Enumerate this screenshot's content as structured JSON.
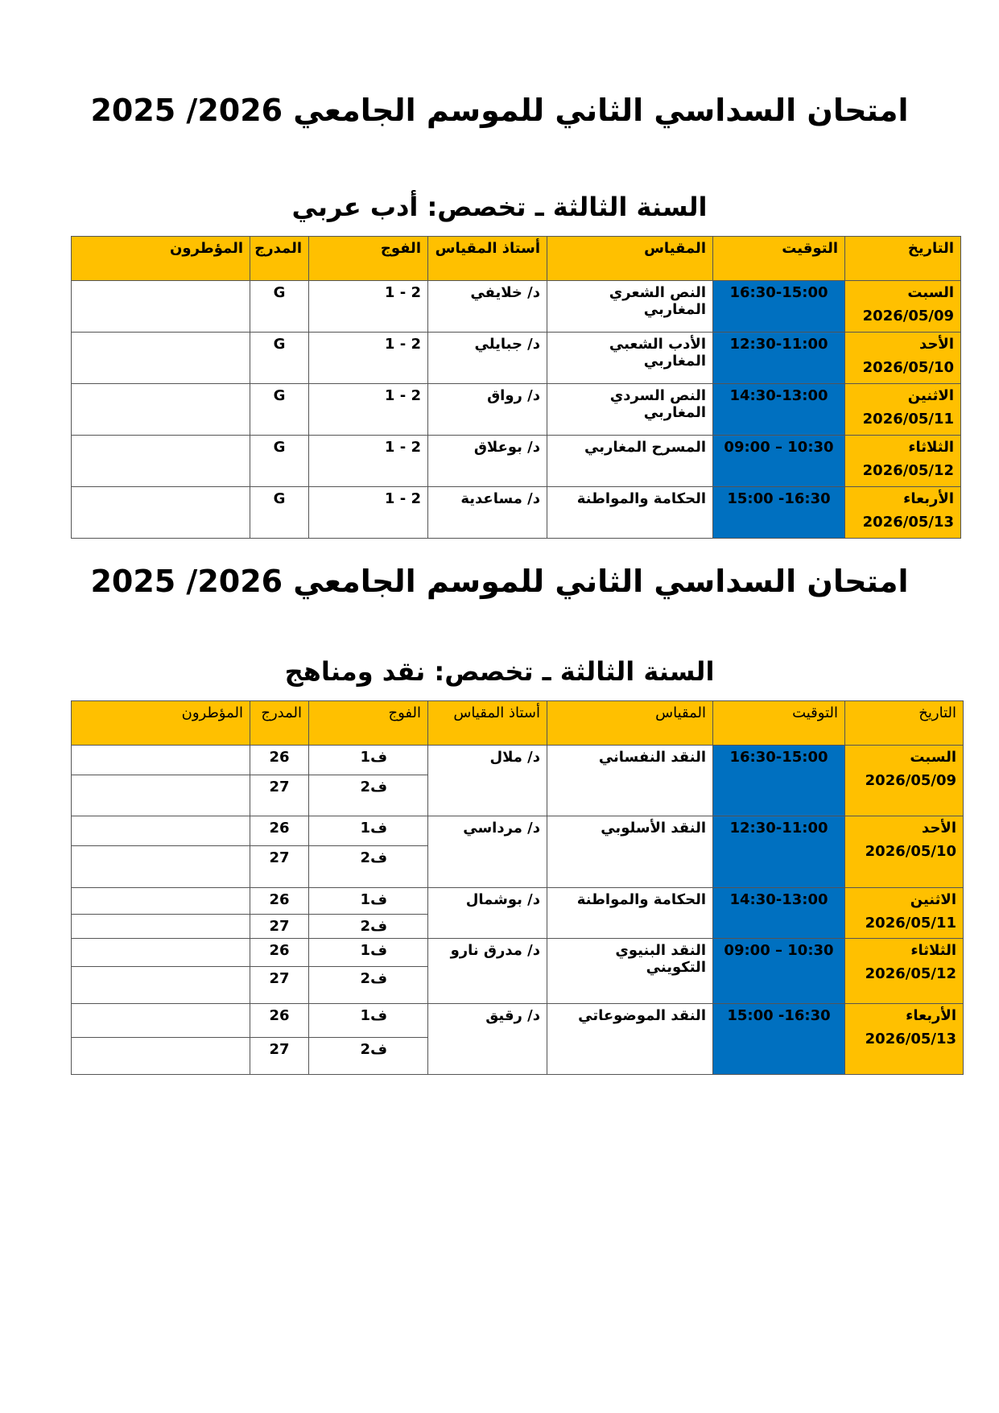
{
  "title": "امتحان السداسي الثاني للموسم الجامعي 2026/ 2025",
  "colors": {
    "header": "#ffc000",
    "date": "#ffc000",
    "time": "#0070c0"
  },
  "headers": [
    "التاريخ",
    "التوقيت",
    "المقياس",
    "أستاذ المقياس",
    "الفوج",
    "المدرج",
    "المؤطرون"
  ],
  "section1": {
    "subtitle": "السنة الثالثة ـ تخصص: أدب عربي",
    "rows": [
      {
        "day": "السبت",
        "date": "2026/05/09",
        "time": "16:30-15:00",
        "module": "النص الشعري المغاربي",
        "teacher": "د/ خلايفي",
        "group": "2 - 1",
        "hall": "G"
      },
      {
        "day": "الأحد",
        "date": "2026/05/10",
        "time": "12:30-11:00",
        "module": "الأدب الشعبي المغاربي",
        "teacher": "د/ جبايلي",
        "group": "2 - 1",
        "hall": "G"
      },
      {
        "day": "الاثنين",
        "date": "2026/05/11",
        "time": "14:30-13:00",
        "module": "النص السردي المغاربي",
        "teacher": "د/ رواق",
        "group": "2 - 1",
        "hall": "G"
      },
      {
        "day": "الثلاثاء",
        "date": "2026/05/12",
        "time": "10:30 – 09:00",
        "module": "المسرح المغاربي",
        "teacher": "د/ بوعلاق",
        "group": "2 - 1",
        "hall": "G"
      },
      {
        "day": "الأربعاء",
        "date": "2026/05/13",
        "time": "16:30- 15:00",
        "module": "الحكامة والمواطنة",
        "teacher": "د/ مساعدية",
        "group": "2 - 1",
        "hall": "G"
      }
    ]
  },
  "section2": {
    "subtitle": "السنة الثالثة ـ تخصص: نقد ومناهج",
    "groups": [
      "ف1",
      "ف2"
    ],
    "halls": [
      "26",
      "27"
    ],
    "rows": [
      {
        "day": "السبت",
        "date": "2026/05/09",
        "time": "16:30-15:00",
        "module": "النقد النفساني",
        "teacher": "د/ ملال"
      },
      {
        "day": "الأحد",
        "date": "2026/05/10",
        "time": "12:30-11:00",
        "module": "النقد الأسلوبي",
        "teacher": "د/ مرداسي"
      },
      {
        "day": "الاثنين",
        "date": "2026/05/11",
        "time": "14:30-13:00",
        "module": "الحكامة والمواطنة",
        "teacher": "د/ بوشمال"
      },
      {
        "day": "الثلاثاء",
        "date": "2026/05/12",
        "time": "10:30 – 09:00",
        "module": "النقد البنيوي التكويني",
        "teacher": "د/ مدرق نارو"
      },
      {
        "day": "الأربعاء",
        "date": "2026/05/13",
        "time": "16:30- 15:00",
        "module": "النقد الموضوعاتي",
        "teacher": "د/ رقيق"
      }
    ]
  }
}
